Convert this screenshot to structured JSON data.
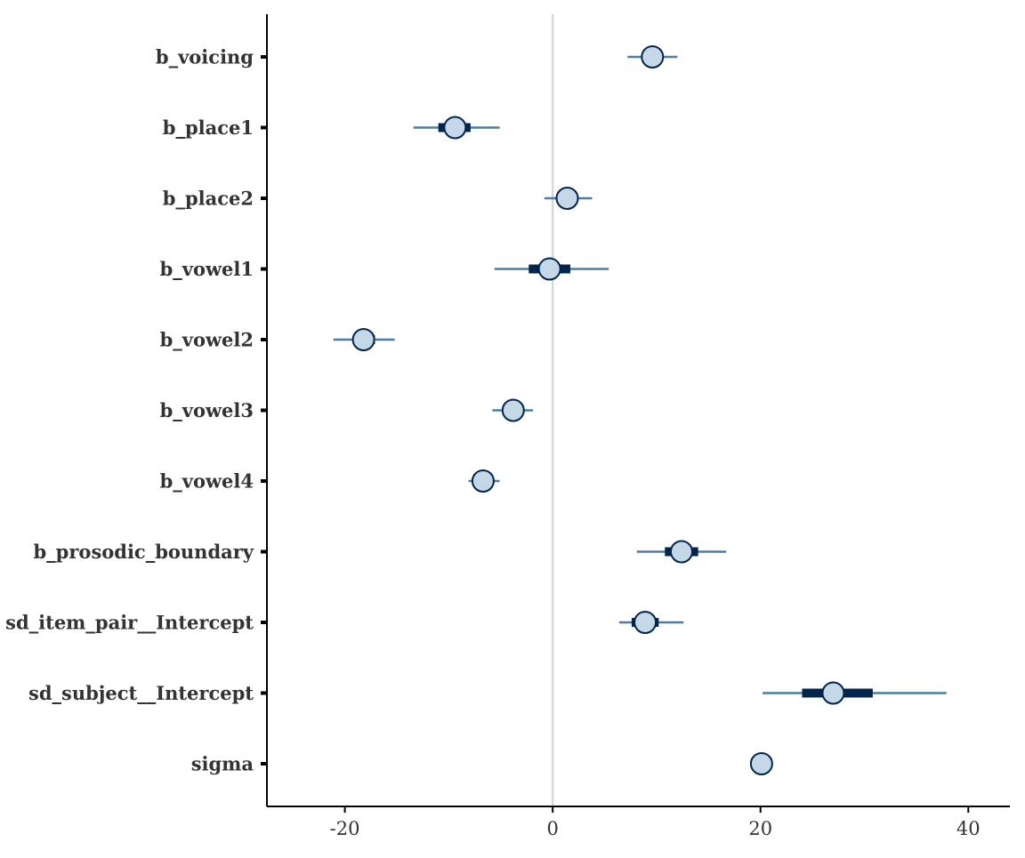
{
  "chart_data": {
    "type": "interval",
    "title": "",
    "xlabel": "",
    "ylabel": "",
    "xlim": [
      -27.5,
      44
    ],
    "xticks": [
      -20,
      0,
      20,
      40
    ],
    "x_tick_labels": [
      "-20",
      "0",
      "20",
      "40"
    ],
    "reference_line": 0,
    "grid": false,
    "parameters": [
      {
        "label": "b_voicing",
        "estimate": 9.6,
        "inner": [
          9.6,
          9.6
        ],
        "outer": [
          7.2,
          12.0
        ]
      },
      {
        "label": "b_place1",
        "estimate": -9.4,
        "inner": [
          -11.0,
          -7.9
        ],
        "outer": [
          -13.4,
          -5.1
        ]
      },
      {
        "label": "b_place2",
        "estimate": 1.4,
        "inner": [
          1.4,
          1.4
        ],
        "outer": [
          -0.8,
          3.8
        ]
      },
      {
        "label": "b_vowel1",
        "estimate": -0.3,
        "inner": [
          -2.3,
          1.7
        ],
        "outer": [
          -5.6,
          5.4
        ]
      },
      {
        "label": "b_vowel2",
        "estimate": -18.2,
        "inner": [
          -19.2,
          -17.1
        ],
        "outer": [
          -21.1,
          -15.2
        ]
      },
      {
        "label": "b_vowel3",
        "estimate": -3.8,
        "inner": [
          -3.8,
          -3.8
        ],
        "outer": [
          -5.8,
          -1.9
        ]
      },
      {
        "label": "b_vowel4",
        "estimate": -6.7,
        "inner": [
          -6.7,
          -6.7
        ],
        "outer": [
          -8.1,
          -5.1
        ]
      },
      {
        "label": "b_prosodic_boundary",
        "estimate": 12.4,
        "inner": [
          10.8,
          14.0
        ],
        "outer": [
          8.1,
          16.7
        ]
      },
      {
        "label": "sd_item_pair__Intercept",
        "estimate": 8.9,
        "inner": [
          7.6,
          10.2
        ],
        "outer": [
          6.4,
          12.6
        ]
      },
      {
        "label": "sd_subject__Intercept",
        "estimate": 27.0,
        "inner": [
          24.0,
          30.8
        ],
        "outer": [
          20.2,
          37.9
        ]
      },
      {
        "label": "sigma",
        "estimate": 20.1,
        "inner": [
          20.1,
          20.1
        ],
        "outer": [
          20.1,
          20.1
        ]
      }
    ],
    "colors": {
      "inner_interval": "#03254c",
      "outer_interval": "#4a7fa3",
      "point_fill": "#c5d8e8",
      "point_stroke": "#03254c",
      "reference_line": "#d9d9d9",
      "axis": "#000000",
      "text": "#333333"
    }
  }
}
